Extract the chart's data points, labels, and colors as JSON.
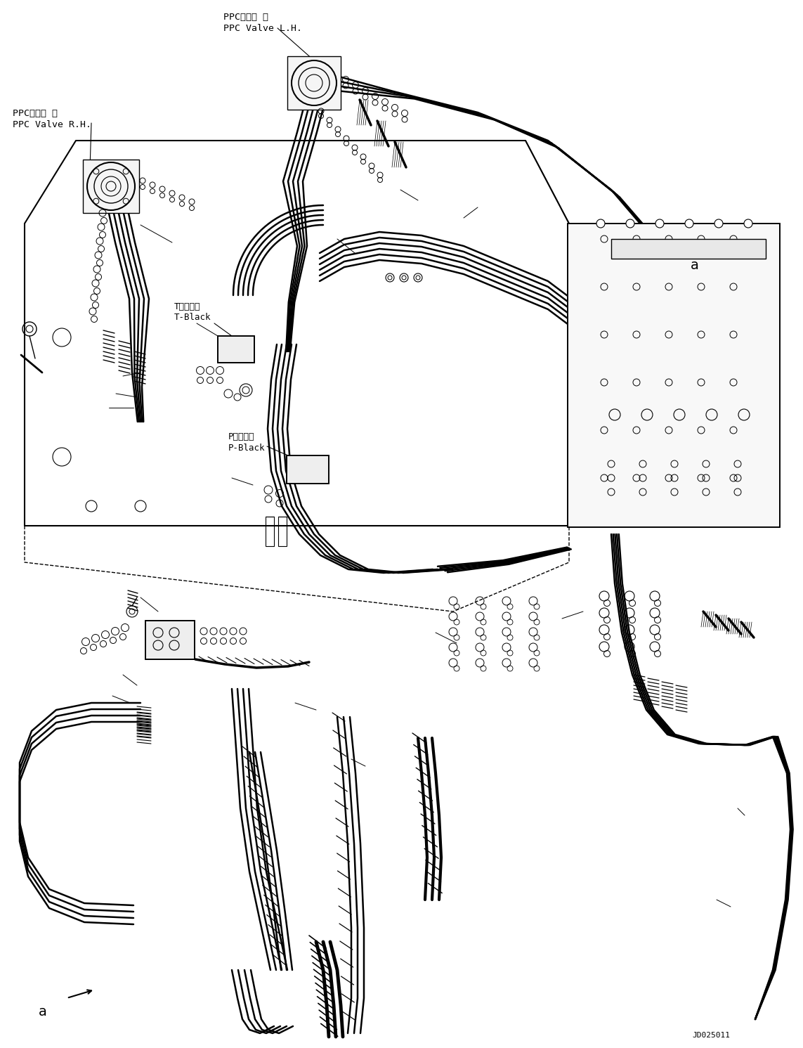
{
  "bg_color": "#ffffff",
  "line_color": "#000000",
  "fig_width": 11.43,
  "fig_height": 14.91,
  "dpi": 100,
  "labels": {
    "ppc_valve_lh_jp": "PPCバルブ 左",
    "ppc_valve_lh_en": "PPC Valve L.H.",
    "ppc_valve_rh_jp": "PPCバルブ 右",
    "ppc_valve_rh_en": "PPC Valve R.H.",
    "t_block_jp": "Tブロック",
    "t_block_en": "T-Black",
    "p_block_jp": "Pブロック",
    "p_block_en": "P-Black",
    "label_a": "a",
    "doc_id": "JD025011"
  }
}
